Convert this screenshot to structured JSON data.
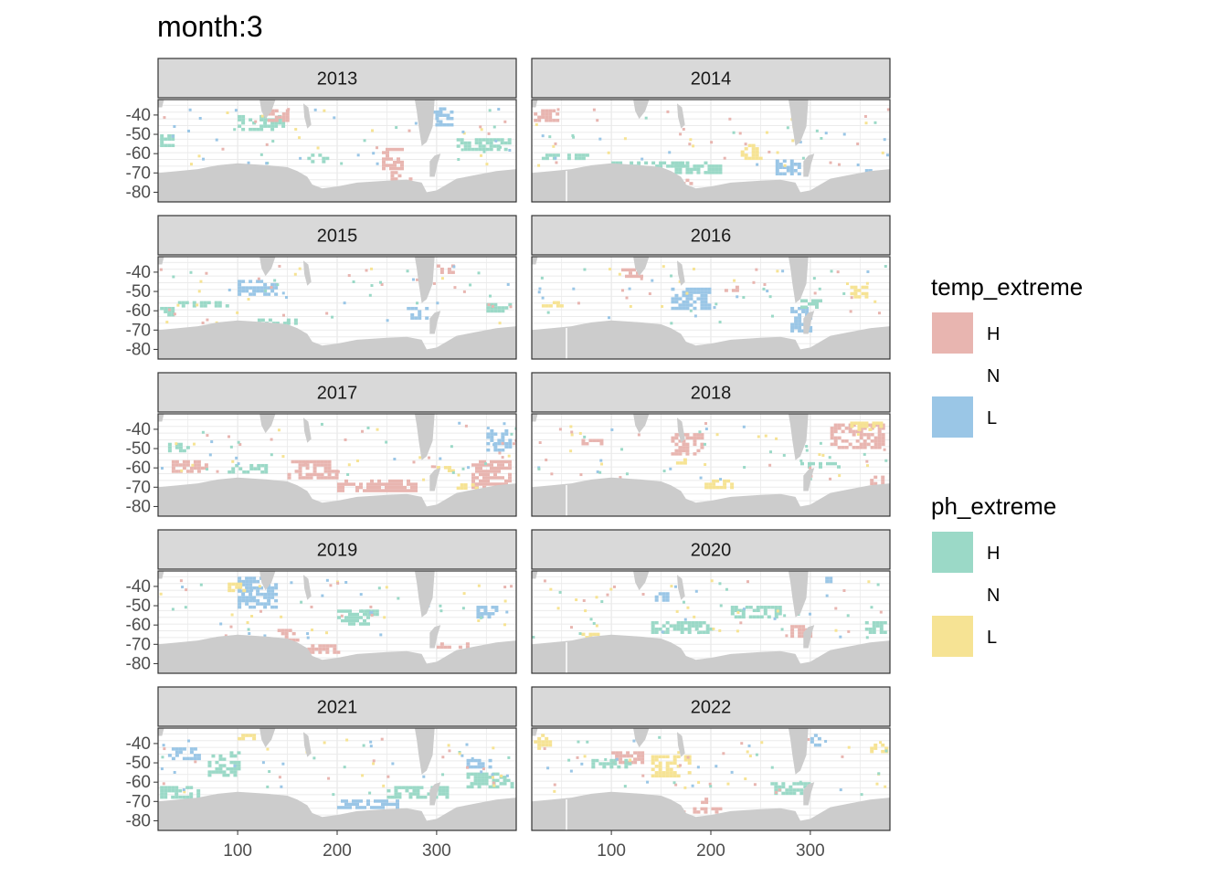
{
  "chart_data": {
    "type": "heatmap",
    "title": "month:3",
    "x_ticks": [
      100,
      200,
      300
    ],
    "y_ticks": [
      -40,
      -50,
      -60,
      -70,
      -80
    ],
    "xlim": [
      20,
      380
    ],
    "ylim": [
      -85,
      -32
    ],
    "grid": true,
    "legend_position": "right",
    "categories": {
      "temp_extreme": [
        "H",
        "N",
        "L"
      ],
      "ph_extreme": [
        "H",
        "N",
        "L"
      ]
    },
    "colors": {
      "temp_H": "#e8b5b0",
      "temp_L": "#9ac6e6",
      "ph_H": "#9bd9c7",
      "ph_L": "#f6e394",
      "land": "#cccccc",
      "strip_bg": "#d9d9d9",
      "grid": "#ebebeb"
    },
    "panels": [
      {
        "year": "2013",
        "patches": [
          {
            "cls": "tH",
            "x": [
              245,
              265
            ],
            "y": [
              -57,
              -68
            ]
          },
          {
            "cls": "tH",
            "x": [
              250,
              275
            ],
            "y": [
              -69,
              -73
            ]
          },
          {
            "cls": "tL",
            "x": [
              295,
              315
            ],
            "y": [
              -36,
              -45
            ]
          },
          {
            "cls": "pH",
            "x": [
              100,
              145
            ],
            "y": [
              -40,
              -48
            ]
          },
          {
            "cls": "pH",
            "x": [
              320,
              375
            ],
            "y": [
              -52,
              -58
            ]
          },
          {
            "cls": "pH",
            "x": [
              22,
              35
            ],
            "y": [
              -50,
              -56
            ]
          },
          {
            "cls": "tH",
            "x": [
              130,
              150
            ],
            "y": [
              -37,
              -43
            ]
          },
          {
            "cls": "pH",
            "x": [
              170,
              190
            ],
            "y": [
              -60,
              -64
            ]
          }
        ]
      },
      {
        "year": "2014",
        "patches": [
          {
            "cls": "tH",
            "x": [
              22,
              45
            ],
            "y": [
              -37,
              -42
            ]
          },
          {
            "cls": "pL",
            "x": [
              230,
              252
            ],
            "y": [
              -55,
              -62
            ]
          },
          {
            "cls": "pH",
            "x": [
              100,
              170
            ],
            "y": [
              -64,
              -67
            ]
          },
          {
            "cls": "pH",
            "x": [
              160,
              210
            ],
            "y": [
              -64,
              -70
            ]
          },
          {
            "cls": "tL",
            "x": [
              265,
              290
            ],
            "y": [
              -63,
              -70
            ]
          },
          {
            "cls": "tL",
            "x": [
              355,
              370
            ],
            "y": [
              -68,
              -71
            ]
          },
          {
            "cls": "pH",
            "x": [
              30,
              80
            ],
            "y": [
              -60,
              -62
            ]
          },
          {
            "cls": "tH",
            "x": [
              160,
              180
            ],
            "y": [
              -73,
              -76
            ]
          }
        ]
      },
      {
        "year": "2015",
        "patches": [
          {
            "cls": "tL",
            "x": [
              100,
              140
            ],
            "y": [
              -44,
              -52
            ]
          },
          {
            "cls": "tL",
            "x": [
              270,
              290
            ],
            "y": [
              -58,
              -64
            ]
          },
          {
            "cls": "pH",
            "x": [
              40,
              90
            ],
            "y": [
              -55,
              -58
            ]
          },
          {
            "cls": "pH",
            "x": [
              350,
              375
            ],
            "y": [
              -56,
              -60
            ]
          },
          {
            "cls": "pH",
            "x": [
              22,
              35
            ],
            "y": [
              -58,
              -62
            ]
          },
          {
            "cls": "pH",
            "x": [
              120,
              160
            ],
            "y": [
              -64,
              -68
            ]
          },
          {
            "cls": "tH",
            "x": [
              300,
              315
            ],
            "y": [
              -36,
              -40
            ]
          }
        ]
      },
      {
        "year": "2016",
        "patches": [
          {
            "cls": "tL",
            "x": [
              160,
              200
            ],
            "y": [
              -48,
              -58
            ]
          },
          {
            "cls": "tL",
            "x": [
              280,
              300
            ],
            "y": [
              -58,
              -70
            ]
          },
          {
            "cls": "tH",
            "x": [
              210,
              230
            ],
            "y": [
              -47,
              -50
            ]
          },
          {
            "cls": "pL",
            "x": [
              30,
              50
            ],
            "y": [
              -55,
              -58
            ]
          },
          {
            "cls": "pL",
            "x": [
              340,
              355
            ],
            "y": [
              -47,
              -52
            ]
          },
          {
            "cls": "tH",
            "x": [
              110,
              130
            ],
            "y": [
              -38,
              -42
            ]
          },
          {
            "cls": "pH",
            "x": [
              290,
              310
            ],
            "y": [
              -54,
              -58
            ]
          }
        ]
      },
      {
        "year": "2017",
        "patches": [
          {
            "cls": "tH",
            "x": [
              30,
              70
            ],
            "y": [
              -56,
              -62
            ]
          },
          {
            "cls": "tH",
            "x": [
              150,
              200
            ],
            "y": [
              -56,
              -65
            ]
          },
          {
            "cls": "tH",
            "x": [
              200,
              280
            ],
            "y": [
              -66,
              -72
            ]
          },
          {
            "cls": "tH",
            "x": [
              335,
              375
            ],
            "y": [
              -56,
              -70
            ]
          },
          {
            "cls": "pH",
            "x": [
              90,
              130
            ],
            "y": [
              -58,
              -62
            ]
          },
          {
            "cls": "pH",
            "x": [
              30,
              50
            ],
            "y": [
              -47,
              -51
            ]
          },
          {
            "cls": "tL",
            "x": [
              350,
              375
            ],
            "y": [
              -40,
              -50
            ]
          },
          {
            "cls": "pL",
            "x": [
              300,
              320
            ],
            "y": [
              -59,
              -62
            ]
          },
          {
            "cls": "pL",
            "x": [
              320,
              340
            ],
            "y": [
              -68,
              -71
            ]
          }
        ]
      },
      {
        "year": "2018",
        "patches": [
          {
            "cls": "tH",
            "x": [
              320,
              375
            ],
            "y": [
              -37,
              -50
            ]
          },
          {
            "cls": "pL",
            "x": [
              340,
              370
            ],
            "y": [
              -36,
              -40
            ]
          },
          {
            "cls": "tH",
            "x": [
              160,
              190
            ],
            "y": [
              -42,
              -52
            ]
          },
          {
            "cls": "pL",
            "x": [
              190,
              220
            ],
            "y": [
              -66,
              -70
            ]
          },
          {
            "cls": "tH",
            "x": [
              360,
              378
            ],
            "y": [
              -64,
              -68
            ]
          },
          {
            "cls": "pH",
            "x": [
              290,
              330
            ],
            "y": [
              -57,
              -60
            ]
          },
          {
            "cls": "pL",
            "x": [
              165,
              175
            ],
            "y": [
              -55,
              -58
            ]
          },
          {
            "cls": "tH",
            "x": [
              70,
              90
            ],
            "y": [
              -45,
              -48
            ]
          }
        ]
      },
      {
        "year": "2019",
        "patches": [
          {
            "cls": "tL",
            "x": [
              100,
              140
            ],
            "y": [
              -35,
              -50
            ]
          },
          {
            "cls": "pH",
            "x": [
              200,
              230
            ],
            "y": [
              -52,
              -60
            ]
          },
          {
            "cls": "tH",
            "x": [
              140,
              160
            ],
            "y": [
              -62,
              -70
            ]
          },
          {
            "cls": "tH",
            "x": [
              170,
              200
            ],
            "y": [
              -70,
              -74
            ]
          },
          {
            "cls": "tL",
            "x": [
              340,
              360
            ],
            "y": [
              -50,
              -55
            ]
          },
          {
            "cls": "pL",
            "x": [
              90,
              105
            ],
            "y": [
              -38,
              -42
            ]
          },
          {
            "cls": "tH",
            "x": [
              300,
              330
            ],
            "y": [
              -69,
              -72
            ]
          },
          {
            "cls": "pH",
            "x": [
              220,
              240
            ],
            "y": [
              -52,
              -55
            ]
          }
        ]
      },
      {
        "year": "2020",
        "patches": [
          {
            "cls": "pH",
            "x": [
              140,
              200
            ],
            "y": [
              -58,
              -64
            ]
          },
          {
            "cls": "pH",
            "x": [
              220,
              270
            ],
            "y": [
              -50,
              -55
            ]
          },
          {
            "cls": "tH",
            "x": [
              280,
              300
            ],
            "y": [
              -60,
              -66
            ]
          },
          {
            "cls": "pH",
            "x": [
              355,
              375
            ],
            "y": [
              -58,
              -63
            ]
          },
          {
            "cls": "pL",
            "x": [
              70,
              90
            ],
            "y": [
              -64,
              -67
            ]
          },
          {
            "cls": "tL",
            "x": [
              140,
              155
            ],
            "y": [
              -43,
              -47
            ]
          },
          {
            "cls": "tL",
            "x": [
              315,
              325
            ],
            "y": [
              -35,
              -38
            ]
          }
        ]
      },
      {
        "year": "2021",
        "patches": [
          {
            "cls": "pH",
            "x": [
              70,
              100
            ],
            "y": [
              -44,
              -56
            ]
          },
          {
            "cls": "pH",
            "x": [
              22,
              60
            ],
            "y": [
              -62,
              -68
            ]
          },
          {
            "cls": "tL",
            "x": [
              200,
              260
            ],
            "y": [
              -69,
              -73
            ]
          },
          {
            "cls": "pH",
            "x": [
              250,
              310
            ],
            "y": [
              -62,
              -68
            ]
          },
          {
            "cls": "pH",
            "x": [
              330,
              375
            ],
            "y": [
              -55,
              -62
            ]
          },
          {
            "cls": "tL",
            "x": [
              30,
              60
            ],
            "y": [
              -42,
              -48
            ]
          },
          {
            "cls": "tL",
            "x": [
              330,
              355
            ],
            "y": [
              -48,
              -52
            ]
          },
          {
            "cls": "pL",
            "x": [
              100,
              115
            ],
            "y": [
              -35,
              -38
            ]
          }
        ]
      },
      {
        "year": "2022",
        "patches": [
          {
            "cls": "pL",
            "x": [
              140,
              180
            ],
            "y": [
              -46,
              -56
            ]
          },
          {
            "cls": "pL",
            "x": [
              22,
              40
            ],
            "y": [
              -35,
              -42
            ]
          },
          {
            "cls": "tH",
            "x": [
              160,
              210
            ],
            "y": [
              -73,
              -76
            ]
          },
          {
            "cls": "pH",
            "x": [
              260,
              300
            ],
            "y": [
              -60,
              -66
            ]
          },
          {
            "cls": "tH",
            "x": [
              100,
              130
            ],
            "y": [
              -44,
              -50
            ]
          },
          {
            "cls": "pH",
            "x": [
              80,
              120
            ],
            "y": [
              -48,
              -52
            ]
          },
          {
            "cls": "tL",
            "x": [
              300,
              310
            ],
            "y": [
              -35,
              -40
            ]
          },
          {
            "cls": "pL",
            "x": [
              360,
              375
            ],
            "y": [
              -40,
              -44
            ]
          },
          {
            "cls": "tH",
            "x": [
              190,
              200
            ],
            "y": [
              -68,
              -72
            ]
          }
        ]
      }
    ]
  },
  "legend": {
    "groups": [
      {
        "title": "temp_extreme",
        "items": [
          {
            "label": "H",
            "color": "#e8b5b0"
          },
          {
            "label": "N",
            "color": null
          },
          {
            "label": "L",
            "color": "#9ac6e6"
          }
        ]
      },
      {
        "title": "ph_extreme",
        "items": [
          {
            "label": "H",
            "color": "#9bd9c7"
          },
          {
            "label": "N",
            "color": null
          },
          {
            "label": "L",
            "color": "#f6e394"
          }
        ]
      }
    ]
  }
}
